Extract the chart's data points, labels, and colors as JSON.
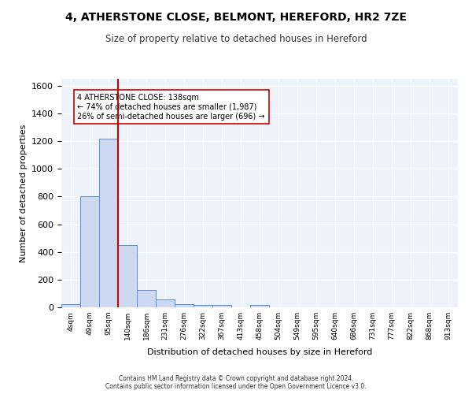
{
  "title": "4, ATHERSTONE CLOSE, BELMONT, HEREFORD, HR2 7ZE",
  "subtitle": "Size of property relative to detached houses in Hereford",
  "xlabel": "Distribution of detached houses by size in Hereford",
  "ylabel": "Number of detached properties",
  "bin_labels": [
    "4sqm",
    "49sqm",
    "95sqm",
    "140sqm",
    "186sqm",
    "231sqm",
    "276sqm",
    "322sqm",
    "367sqm",
    "413sqm",
    "458sqm",
    "504sqm",
    "549sqm",
    "595sqm",
    "640sqm",
    "686sqm",
    "731sqm",
    "777sqm",
    "822sqm",
    "868sqm",
    "913sqm"
  ],
  "bar_values": [
    25,
    800,
    1220,
    450,
    125,
    57,
    25,
    15,
    15,
    0,
    15,
    0,
    0,
    0,
    0,
    0,
    0,
    0,
    0,
    0,
    0
  ],
  "bar_color": "#ccd9f0",
  "bar_edge_color": "#5b8fcf",
  "background_color": "#eef2fb",
  "grid_color": "#ffffff",
  "vline_x": 2.5,
  "vline_color": "#cc0000",
  "annotation_text": "4 ATHERSTONE CLOSE: 138sqm\n← 74% of detached houses are smaller (1,987)\n26% of semi-detached houses are larger (696) →",
  "annotation_box_color": "#ffffff",
  "annotation_box_edge": "#cc0000",
  "ylim": [
    0,
    1650
  ],
  "yticks": [
    0,
    200,
    400,
    600,
    800,
    1000,
    1200,
    1400,
    1600
  ],
  "footer_text": "Contains HM Land Registry data © Crown copyright and database right 2024.\nContains public sector information licensed under the Open Government Licence v3.0."
}
